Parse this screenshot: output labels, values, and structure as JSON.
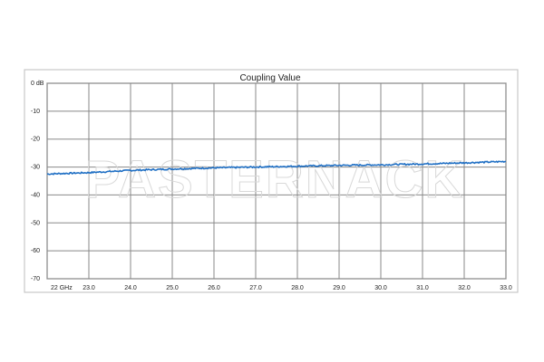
{
  "chart_data": {
    "type": "line",
    "title": "Coupling Value",
    "xlim": [
      22,
      33
    ],
    "ylim": [
      -70,
      0
    ],
    "x_ticks": [
      "22 GHz",
      "23.0",
      "24.0",
      "25.0",
      "26.0",
      "27.0",
      "28.0",
      "29.0",
      "30.0",
      "31.0",
      "32.0",
      "33.0"
    ],
    "y_ticks": [
      "0 dB",
      "-10",
      "-20",
      "-30",
      "-40",
      "-50",
      "-60",
      "-70"
    ],
    "grid": true,
    "series": [
      {
        "color": "#1f6fc4",
        "x": [
          22,
          23,
          24,
          25,
          26,
          27,
          28,
          29,
          30,
          31,
          32,
          33
        ],
        "y": [
          -32.5,
          -32.0,
          -31.2,
          -30.7,
          -30.3,
          -30.0,
          -29.7,
          -29.4,
          -29.2,
          -28.9,
          -28.5,
          -28.0
        ]
      }
    ],
    "watermark": "PASTERNACK"
  }
}
